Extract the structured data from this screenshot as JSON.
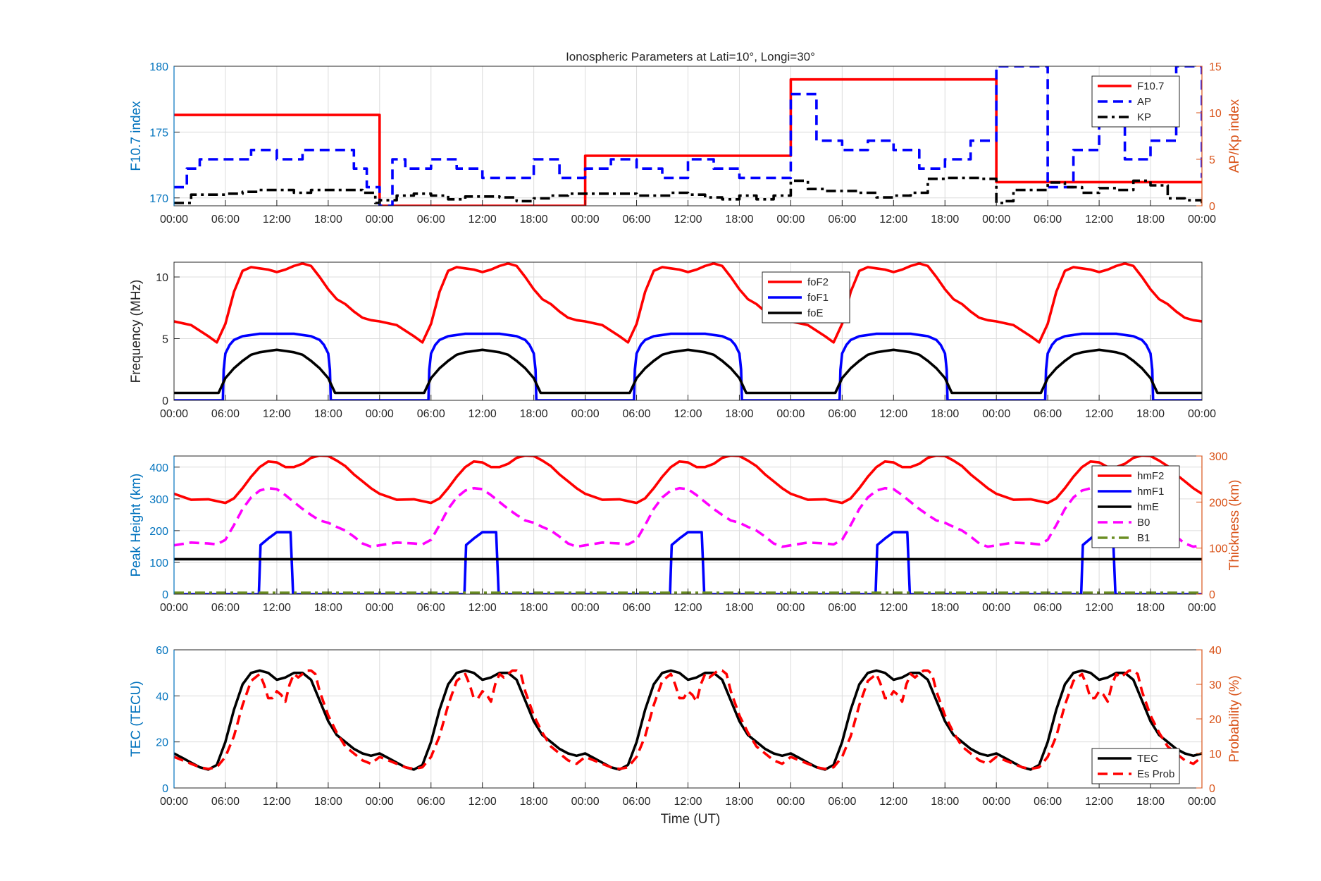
{
  "figure": {
    "title": "Ionospheric Parameters at Lati=10°, Longi=30°",
    "xlabel": "Time (UT)"
  },
  "colors": {
    "left_axis": "#0072BD",
    "right_axis": "#D95319",
    "red": "#FF0000",
    "blue": "#0000FF",
    "black": "#000000",
    "magenta": "#FF00FF",
    "olive": "#6B8E23",
    "grid": "#DCDCDC"
  },
  "chart_data": [
    {
      "type": "line",
      "panel": 1,
      "title": "Ionospheric Parameters at Lati=10°, Longi=30°",
      "xlabel": "",
      "ylabel": "F10.7 index",
      "y2label": "AP/Kp index",
      "xlim": [
        0,
        120
      ],
      "ylim": [
        169.4,
        180
      ],
      "y2lim": [
        0,
        15
      ],
      "yticks": [
        170,
        175,
        180
      ],
      "y2ticks": [
        0,
        5,
        10,
        15
      ],
      "xticklabels": [
        "00:00",
        "06:00",
        "12:00",
        "18:00",
        "00:00",
        "06:00",
        "12:00",
        "18:00",
        "00:00",
        "06:00",
        "12:00",
        "18:00",
        "00:00",
        "06:00",
        "12:00",
        "18:00",
        "00:00",
        "06:00",
        "12:00",
        "18:00",
        "00:00"
      ],
      "grid": true,
      "legend_position": "top-right",
      "series": [
        {
          "name": "F10.7",
          "axis": "left",
          "style": "solid",
          "color": "red",
          "step": true,
          "x": [
            0,
            24,
            48,
            72,
            96,
            120
          ],
          "y": [
            176.3,
            169.4,
            173.2,
            179,
            171.2,
            171.2
          ]
        },
        {
          "name": "AP",
          "axis": "right",
          "style": "dashed",
          "color": "blue",
          "step": true,
          "x": [
            0,
            1.5,
            3,
            6,
            9,
            12,
            15,
            18,
            21,
            22.5,
            24,
            25.5,
            27,
            30,
            33,
            36,
            39,
            42,
            45,
            48,
            51,
            54,
            57,
            60,
            63,
            66,
            69,
            72,
            75,
            78,
            81,
            84,
            87,
            90,
            93,
            96,
            97.5,
            99,
            102,
            105,
            108,
            111,
            114,
            117,
            120
          ],
          "y": [
            2,
            4,
            5,
            5,
            6,
            5,
            6,
            6,
            4,
            2,
            0,
            5,
            4,
            5,
            4,
            3,
            3,
            5,
            3,
            4,
            5,
            4,
            3,
            5,
            4,
            3,
            3,
            12,
            7,
            6,
            7,
            6,
            4,
            5,
            7,
            15,
            15,
            15,
            2,
            6,
            12,
            5,
            7,
            15,
            3
          ]
        },
        {
          "name": "KP",
          "axis": "right",
          "style": "dashdot",
          "color": "black",
          "step": true,
          "x": [
            0,
            2,
            4,
            6,
            8,
            10,
            12,
            14,
            16,
            18,
            20,
            22,
            23.5,
            24,
            26,
            28,
            30,
            32,
            34,
            36,
            38,
            40,
            42,
            44,
            46,
            48,
            50,
            52,
            54,
            56,
            58,
            60,
            62,
            64,
            66,
            68,
            70,
            72,
            74,
            76,
            78,
            80,
            82,
            84,
            86,
            88,
            90,
            92,
            94,
            96,
            97,
            98,
            100,
            102,
            104,
            106,
            108,
            110,
            112,
            114,
            116,
            118,
            120
          ],
          "y": [
            0.3,
            1.2,
            1.2,
            1.3,
            1.5,
            1.7,
            1.7,
            1.4,
            1.7,
            1.7,
            1.7,
            1.4,
            0.3,
            0.6,
            1.1,
            1.3,
            1.1,
            0.7,
            1.0,
            1.0,
            0.9,
            0.5,
            0.8,
            1.1,
            1.3,
            1.3,
            1.3,
            1.3,
            1.1,
            1.1,
            1.4,
            1.2,
            0.9,
            0.7,
            1.1,
            0.7,
            1.1,
            2.7,
            1.8,
            1.6,
            1.6,
            1.4,
            0.9,
            1.1,
            1.4,
            2.9,
            3.0,
            3.0,
            2.9,
            0.3,
            0.5,
            1.7,
            1.7,
            2.5,
            2.0,
            1.4,
            1.9,
            1.7,
            2.7,
            2.2,
            0.8,
            0.6,
            0.2
          ]
        }
      ]
    },
    {
      "type": "line",
      "panel": 2,
      "xlabel": "",
      "ylabel": "Frequency (MHz)",
      "xlim": [
        0,
        120
      ],
      "ylim": [
        0,
        11.2
      ],
      "yticks": [
        0,
        5,
        10
      ],
      "grid": true,
      "legend_position": "top-center",
      "periodic_hours": 24,
      "series": [
        {
          "name": "foF2",
          "color": "red",
          "style": "solid",
          "x": [
            0,
            2,
            4,
            5,
            6,
            7,
            8,
            9,
            10,
            11,
            12,
            13,
            14,
            15,
            16,
            17,
            18,
            19,
            20,
            21,
            22,
            23,
            24
          ],
          "y": [
            6.4,
            6.1,
            5.2,
            4.7,
            6.2,
            8.8,
            10.5,
            10.8,
            10.7,
            10.6,
            10.4,
            10.6,
            10.9,
            11.1,
            10.9,
            10.0,
            9.0,
            8.2,
            7.8,
            7.2,
            6.7,
            6.5,
            6.4
          ]
        },
        {
          "name": "foF1",
          "color": "blue",
          "style": "solid",
          "x": [
            0,
            5.7,
            5.8,
            6.0,
            6.5,
            7,
            8,
            9,
            10,
            11,
            12,
            13,
            14,
            15,
            16,
            17,
            17.5,
            18.0,
            18.2,
            18.3,
            24
          ],
          "y": [
            0,
            0,
            2.5,
            3.8,
            4.5,
            4.9,
            5.2,
            5.3,
            5.4,
            5.4,
            5.4,
            5.4,
            5.4,
            5.3,
            5.2,
            4.9,
            4.5,
            3.8,
            2.5,
            0,
            0
          ]
        },
        {
          "name": "foE",
          "color": "black",
          "style": "solid",
          "x": [
            0,
            5.2,
            6,
            7,
            8,
            9,
            10,
            11,
            12,
            13,
            14,
            15,
            16,
            17,
            18,
            18.8,
            24
          ],
          "y": [
            0.6,
            0.6,
            1.8,
            2.6,
            3.2,
            3.7,
            3.9,
            4.0,
            4.1,
            4.0,
            3.9,
            3.7,
            3.2,
            2.6,
            1.8,
            0.6,
            0.6
          ]
        }
      ]
    },
    {
      "type": "line",
      "panel": 3,
      "xlabel": "",
      "ylabel": "Peak Height (km)",
      "y2label": "Thickness (km)",
      "xlim": [
        0,
        120
      ],
      "ylim": [
        0,
        435
      ],
      "y2lim": [
        0,
        300
      ],
      "yticks": [
        0,
        100,
        200,
        300,
        400
      ],
      "y2ticks": [
        0,
        100,
        200,
        300
      ],
      "grid": true,
      "legend_position": "top-right",
      "periodic_hours": 24,
      "series": [
        {
          "name": "hmF2",
          "axis": "right",
          "color": "red",
          "style": "solid",
          "x": [
            0,
            2,
            4,
            6,
            7,
            8,
            9,
            10,
            11,
            12,
            13,
            14,
            15,
            16,
            17,
            18,
            19,
            20,
            21,
            22,
            23,
            24
          ],
          "y": [
            218,
            205,
            206,
            198,
            208,
            230,
            255,
            276,
            288,
            286,
            276,
            276,
            283,
            296,
            301,
            300,
            290,
            278,
            260,
            245,
            230,
            218
          ]
        },
        {
          "name": "hmF1",
          "axis": "left",
          "color": "blue",
          "style": "solid",
          "x": [
            0,
            9.9,
            10.1,
            11,
            12,
            13.0,
            13.6,
            13.9,
            24
          ],
          "y": [
            0,
            0,
            155,
            175,
            195,
            195,
            195,
            0,
            0
          ]
        },
        {
          "name": "hmE",
          "axis": "left",
          "color": "black",
          "style": "solid",
          "x": [
            0,
            24
          ],
          "y": [
            110,
            110
          ]
        },
        {
          "name": "B0",
          "axis": "right",
          "color": "magenta",
          "style": "dashed",
          "x": [
            0,
            2,
            4,
            5,
            6,
            7,
            8,
            9,
            10,
            11,
            12,
            13,
            14,
            15,
            16,
            17,
            18,
            19,
            20,
            21,
            22,
            23,
            24
          ],
          "y": [
            106,
            112,
            110,
            108,
            118,
            150,
            185,
            210,
            225,
            230,
            228,
            215,
            200,
            185,
            172,
            160,
            155,
            146,
            138,
            125,
            110,
            103,
            106
          ]
        },
        {
          "name": "B1",
          "axis": "right",
          "color": "olive",
          "style": "dashdot",
          "x": [
            0,
            24
          ],
          "y": [
            3,
            3
          ]
        }
      ]
    },
    {
      "type": "line",
      "panel": 4,
      "xlabel": "Time (UT)",
      "ylabel": "TEC (TECU)",
      "y2label": "Probability (%)",
      "xlim": [
        0,
        120
      ],
      "ylim": [
        0,
        60
      ],
      "y2lim": [
        0,
        40
      ],
      "yticks": [
        0,
        20,
        40,
        60
      ],
      "y2ticks": [
        0,
        10,
        20,
        30,
        40
      ],
      "grid": true,
      "legend_position": "bottom-right",
      "periodic_hours": 24,
      "series": [
        {
          "name": "TEC",
          "axis": "left",
          "color": "black",
          "style": "solid",
          "x": [
            0,
            1,
            2,
            3,
            4,
            5,
            6,
            7,
            8,
            9,
            10,
            11,
            12,
            13,
            14,
            15,
            16,
            17,
            18,
            19,
            20,
            21,
            22,
            23,
            24
          ],
          "y": [
            15,
            13,
            11,
            9,
            8,
            10,
            20,
            34,
            45,
            50,
            51,
            50,
            47,
            48,
            50,
            50,
            47,
            38,
            29,
            23,
            20,
            17,
            15,
            14,
            15
          ]
        },
        {
          "name": "Es Prob",
          "axis": "right",
          "color": "red",
          "style": "dashed",
          "x": [
            0,
            1,
            2,
            3,
            4,
            5,
            6,
            7,
            8,
            9,
            10,
            10.5,
            11,
            11.5,
            12,
            12.5,
            13,
            13.5,
            14,
            14.5,
            15,
            15.5,
            16,
            16.5,
            17,
            18,
            19,
            20,
            21,
            22,
            23,
            24
          ],
          "y": [
            9,
            8,
            7,
            6,
            5.5,
            6,
            9,
            15,
            24,
            31,
            33,
            30,
            26,
            26,
            28,
            27,
            25,
            30,
            33,
            32,
            33,
            34,
            34,
            33,
            28,
            21,
            16,
            12,
            10,
            8,
            7,
            9
          ]
        }
      ]
    }
  ]
}
